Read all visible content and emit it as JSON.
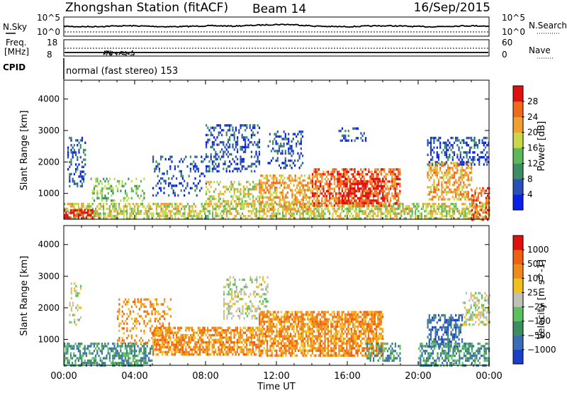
{
  "header": {
    "station": "Zhongshan Station (fitACF)",
    "beam": "Beam 14",
    "date": "16/Sep/2015"
  },
  "noise_panel": {
    "left_label": "N.Sky",
    "left_ticks": [
      "10^5",
      "10^0"
    ],
    "right_ticks": [
      "10^5",
      "10^0"
    ],
    "right_label": "N.Search"
  },
  "freq_panel": {
    "left_label_1": "Freq.",
    "left_label_2": "[MHz]",
    "left_ticks": [
      "18",
      "8"
    ],
    "right_ticks": [
      "60",
      "0"
    ],
    "right_label": "Nave",
    "cpid_label": "CPID"
  },
  "cpid_text": "normal (fast stereo) 153",
  "chart_data": [
    {
      "type": "heatmap",
      "parameter": "power",
      "ylabel": "Slant Range [km]",
      "y_ticks": [
        1000,
        2000,
        3000,
        4000
      ],
      "ylim": [
        180,
        4600
      ],
      "colorbar": {
        "label": "Power [dB]",
        "ticks": [
          "4",
          "8",
          "12",
          "16",
          "20",
          "24",
          "28"
        ],
        "colors": [
          "#0a1fe8",
          "#2a50b8",
          "#3c8c64",
          "#5cb85a",
          "#c8d84a",
          "#f0a030",
          "#f06a1e",
          "#e01010"
        ]
      },
      "echo_regions": [
        {
          "t": [
            0.0,
            24.0
          ],
          "r": [
            200,
            700
          ],
          "level": 4,
          "density": 0.62
        },
        {
          "t": [
            0.0,
            1.6
          ],
          "r": [
            200,
            500
          ],
          "level": 7,
          "density": 0.7
        },
        {
          "t": [
            0.2,
            1.2
          ],
          "r": [
            1200,
            2800
          ],
          "level": 1,
          "density": 0.35
        },
        {
          "t": [
            1.5,
            4.5
          ],
          "r": [
            800,
            1500
          ],
          "level": 3,
          "density": 0.3
        },
        {
          "t": [
            5.0,
            8.0
          ],
          "r": [
            900,
            2200
          ],
          "level": 1,
          "density": 0.25
        },
        {
          "t": [
            8.0,
            11.0
          ],
          "r": [
            600,
            1400
          ],
          "level": 4,
          "density": 0.4
        },
        {
          "t": [
            8.0,
            11.0
          ],
          "r": [
            1700,
            3200
          ],
          "level": 1,
          "density": 0.35
        },
        {
          "t": [
            11.0,
            14.0
          ],
          "r": [
            500,
            1600
          ],
          "level": 5,
          "density": 0.55
        },
        {
          "t": [
            11.5,
            13.5
          ],
          "r": [
            1800,
            3000
          ],
          "level": 1,
          "density": 0.35
        },
        {
          "t": [
            14.0,
            19.0
          ],
          "r": [
            600,
            1800
          ],
          "level": 6,
          "density": 0.6
        },
        {
          "t": [
            15.5,
            18.0
          ],
          "r": [
            700,
            1500
          ],
          "level": 7,
          "density": 0.55
        },
        {
          "t": [
            15.5,
            17.0
          ],
          "r": [
            2700,
            3100
          ],
          "level": 1,
          "density": 0.3
        },
        {
          "t": [
            20.5,
            23.0
          ],
          "r": [
            800,
            2000
          ],
          "level": 5,
          "density": 0.55
        },
        {
          "t": [
            20.5,
            24.0
          ],
          "r": [
            1900,
            2800
          ],
          "level": 1,
          "density": 0.35
        },
        {
          "t": [
            23.0,
            24.0
          ],
          "r": [
            200,
            1200
          ],
          "level": 6,
          "density": 0.55
        }
      ]
    },
    {
      "type": "heatmap",
      "parameter": "velocity",
      "ylabel": "Slant Range [km]",
      "y_ticks": [
        1000,
        2000,
        3000,
        4000
      ],
      "ylim": [
        180,
        4600
      ],
      "colorbar": {
        "label": "Velocity [m s^-1]",
        "ticks": [
          "1000",
          "500",
          "100",
          "25",
          "−25",
          "−100",
          "−500",
          "−1000"
        ],
        "colors": [
          "#1a3ec8",
          "#3a6cb8",
          "#3c8c64",
          "#5cc060",
          "#c0c0b8",
          "#f0c020",
          "#f08a18",
          "#f06010",
          "#e01010"
        ]
      },
      "echo_regions": [
        {
          "t": [
            0.0,
            5.0
          ],
          "r": [
            200,
            900
          ],
          "level": 2,
          "density": 0.55
        },
        {
          "t": [
            0.3,
            1.0
          ],
          "r": [
            1500,
            2800
          ],
          "level": 4,
          "density": 0.3
        },
        {
          "t": [
            3.0,
            6.0
          ],
          "r": [
            900,
            2300
          ],
          "level": 6,
          "density": 0.3
        },
        {
          "t": [
            5.0,
            11.0
          ],
          "r": [
            500,
            1400
          ],
          "level": 6,
          "density": 0.65
        },
        {
          "t": [
            9.0,
            11.5
          ],
          "r": [
            1700,
            3000
          ],
          "level": 4,
          "density": 0.35
        },
        {
          "t": [
            11.0,
            18.0
          ],
          "r": [
            500,
            1900
          ],
          "level": 6,
          "density": 0.7
        },
        {
          "t": [
            17.0,
            19.0
          ],
          "r": [
            300,
            900
          ],
          "level": 2,
          "density": 0.5
        },
        {
          "t": [
            20.5,
            22.5
          ],
          "r": [
            800,
            1800
          ],
          "level": 1,
          "density": 0.55
        },
        {
          "t": [
            20.0,
            24.0
          ],
          "r": [
            200,
            900
          ],
          "level": 2,
          "density": 0.55
        },
        {
          "t": [
            22.5,
            24.0
          ],
          "r": [
            1500,
            2500
          ],
          "level": 4,
          "density": 0.4
        }
      ]
    }
  ],
  "time_axis": {
    "ticks": [
      "00:00",
      "04:00",
      "08:00",
      "12:00",
      "16:00",
      "20:00",
      "00:00"
    ],
    "label": "Time UT"
  }
}
